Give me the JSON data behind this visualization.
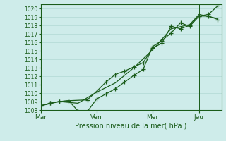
{
  "bg_color": "#ceecea",
  "grid_color_major": "#b0d8d4",
  "grid_color_minor": "#c8e8e5",
  "line_color": "#1a5c1a",
  "xlabel": "Pression niveau de la mer( hPa )",
  "ylim": [
    1008,
    1020.5
  ],
  "xlim": [
    0,
    9.7
  ],
  "yticks": [
    1008,
    1009,
    1010,
    1011,
    1012,
    1013,
    1014,
    1015,
    1016,
    1017,
    1018,
    1019,
    1020
  ],
  "xtick_labels": [
    "Mar",
    "Ven",
    "Mer",
    "Jeu"
  ],
  "xtick_positions": [
    0.0,
    3.0,
    6.0,
    8.5
  ],
  "vline_positions": [
    0.0,
    3.0,
    6.0,
    8.5
  ],
  "series1_x": [
    0.0,
    0.5,
    1.0,
    1.5,
    2.0,
    2.5,
    3.0,
    3.5,
    4.0,
    4.5,
    5.0,
    5.5,
    6.0,
    6.5,
    7.0,
    7.5,
    8.0,
    8.5,
    9.0,
    9.5
  ],
  "series1_y": [
    1008.5,
    1008.8,
    1009.0,
    1009.1,
    1007.9,
    1007.8,
    1009.3,
    1009.9,
    1010.5,
    1011.3,
    1012.1,
    1012.8,
    1015.5,
    1016.2,
    1017.1,
    1018.3,
    1017.9,
    1019.1,
    1019.1,
    1018.7
  ],
  "series2_x": [
    0.0,
    0.5,
    1.0,
    1.5,
    2.5,
    3.0,
    3.5,
    4.0,
    4.5,
    5.0,
    5.5,
    6.0,
    6.5,
    7.0,
    7.5,
    8.0,
    8.5,
    9.0,
    9.5
  ],
  "series2_y": [
    1008.5,
    1008.8,
    1009.0,
    1009.1,
    1009.2,
    1010.2,
    1011.3,
    1012.2,
    1012.6,
    1013.1,
    1013.6,
    1015.3,
    1015.9,
    1017.9,
    1017.6,
    1018.0,
    1019.1,
    1019.3,
    1020.3
  ],
  "series3_x": [
    0.0,
    1.0,
    2.0,
    3.0,
    4.0,
    5.0,
    6.0,
    7.0,
    8.0,
    8.5,
    9.5
  ],
  "series3_y": [
    1008.5,
    1009.0,
    1008.8,
    1010.1,
    1011.2,
    1013.0,
    1015.1,
    1017.6,
    1018.1,
    1019.3,
    1018.8
  ]
}
